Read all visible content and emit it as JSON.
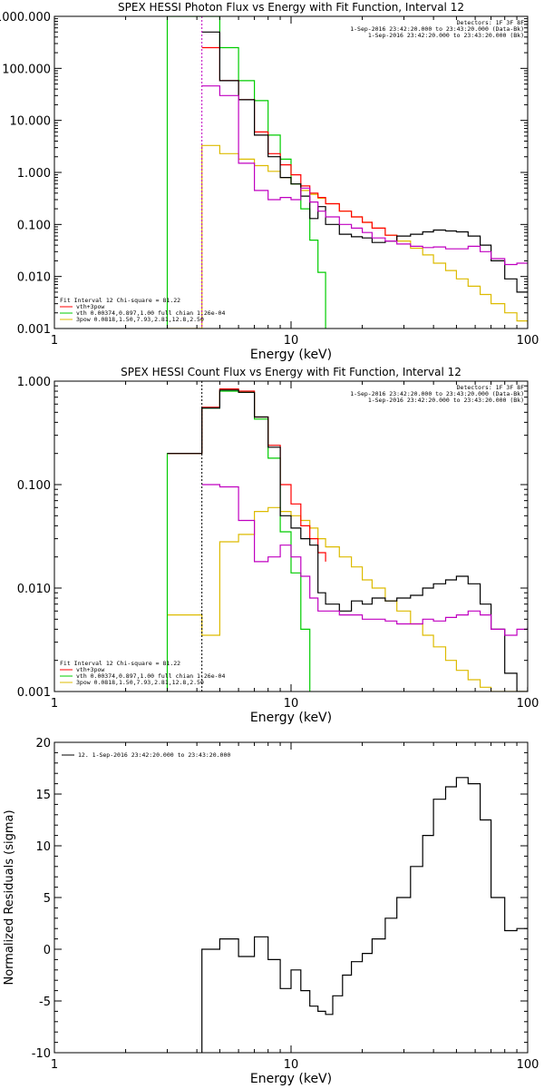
{
  "chart_data": [
    {
      "type": "line",
      "title": "SPEX HESSI Photon Flux vs Energy with Fit Function, Interval 12",
      "xlabel": "Energy (keV)",
      "ylabel": "",
      "xscale": "log",
      "yscale": "log",
      "xlim": [
        1,
        100
      ],
      "ylim": [
        0.001,
        1000
      ],
      "xticks": [
        {
          "v": 1,
          "label": "1"
        },
        {
          "v": 10,
          "label": "10"
        },
        {
          "v": 100,
          "label": "100"
        }
      ],
      "yticks": [
        {
          "v": 0.001,
          "label": "0.001"
        },
        {
          "v": 0.01,
          "label": "0.010"
        },
        {
          "v": 0.1,
          "label": "0.100"
        },
        {
          "v": 1,
          "label": "1.000"
        },
        {
          "v": 10,
          "label": "10.000"
        },
        {
          "v": 100,
          "label": "100.000"
        },
        {
          "v": 1000,
          "label": "1000.000"
        }
      ],
      "vline": {
        "x": 4.2,
        "color": "#c000c0"
      },
      "legend_top_right": [
        {
          "text": "Detectors: 1F 3F 8F",
          "color": "#000000"
        },
        {
          "text": "1-Sep-2016 23:42:20.000 to 23:43:20.000 (Data-Bk)",
          "color": "#000000"
        },
        {
          "text": "1-Sep-2016 23:42:20.000 to 23:43:20.000 (Bk)",
          "color": "#c000c0"
        }
      ],
      "legend_bottom_left": [
        {
          "text": "Fit Interval 12    Chi-square = 81.22",
          "color": "#000000"
        },
        {
          "text": "vth+3pow",
          "color": "#ff0000"
        },
        {
          "text": "vth 0.00374,0.897,1.00  full chian 1.26e-04",
          "color": "#00cc00"
        },
        {
          "text": "3pow 0.0818,1.50,7.93,2.81,12.8,2.50",
          "color": "#ddbb00"
        }
      ],
      "series": [
        {
          "color": "#ddbb00",
          "x": [
            3.0,
            4.2,
            5.0,
            6.0,
            7.0,
            8.0,
            9.0,
            10.0,
            11.0,
            12.0,
            13.0,
            14.0,
            16.0,
            18.0,
            20.0,
            22.0,
            25.0,
            28.0,
            32.0,
            36.0,
            40.0,
            45.0,
            50.0,
            56.0,
            63.0,
            70.0,
            80.0,
            90.0,
            100.0
          ],
          "y": [
            0.001,
            3.3,
            2.3,
            1.8,
            1.35,
            1.05,
            0.8,
            0.6,
            0.45,
            0.38,
            0.32,
            0.25,
            0.18,
            0.14,
            0.11,
            0.085,
            0.062,
            0.048,
            0.035,
            0.026,
            0.018,
            0.013,
            0.009,
            0.0065,
            0.0045,
            0.003,
            0.002,
            0.0014,
            0.0012
          ]
        },
        {
          "color": "#00cc00",
          "x": [
            3.0,
            3.0,
            4.2,
            5.0,
            6.0,
            7.0,
            8.0,
            9.0,
            10.0,
            11.0,
            12.0,
            13.0,
            14.0,
            14.0
          ],
          "y": [
            0.001,
            1000,
            1000,
            250,
            58,
            24,
            5.2,
            1.8,
            0.6,
            0.2,
            0.05,
            0.012,
            0.0035,
            0.001
          ]
        },
        {
          "color": "#ff0000",
          "x": [
            4.2,
            5.0,
            6.0,
            7.0,
            8.0,
            9.0,
            10.0,
            11.0,
            12.0,
            13.0,
            14.0,
            16.0,
            18.0,
            20.0,
            22.0,
            25.0,
            28.0
          ],
          "y": [
            250,
            58,
            25,
            6,
            2.3,
            1.4,
            0.9,
            0.55,
            0.4,
            0.33,
            0.25,
            0.18,
            0.14,
            0.11,
            0.085,
            0.062,
            0.05
          ]
        },
        {
          "color": "#000000",
          "x": [
            4.2,
            5.0,
            6.0,
            7.0,
            8.0,
            9.0,
            10.0,
            11.0,
            12.0,
            13.0,
            14.0,
            16.0,
            18.0,
            20.0,
            22.0,
            25.0,
            28.0,
            32.0,
            36.0,
            40.0,
            45.0,
            50.0,
            56.0,
            63.0,
            70.0,
            80.0,
            90.0,
            100.0
          ],
          "y": [
            500,
            58,
            25,
            5.2,
            2.0,
            0.8,
            0.6,
            0.35,
            0.13,
            0.22,
            0.1,
            0.065,
            0.058,
            0.055,
            0.045,
            0.048,
            0.06,
            0.065,
            0.072,
            0.078,
            0.075,
            0.072,
            0.06,
            0.04,
            0.02,
            0.009,
            0.005,
            0.005
          ]
        },
        {
          "color": "#c000c0",
          "x": [
            4.2,
            5.0,
            6.0,
            7.0,
            8.0,
            9.0,
            10.0,
            11.0,
            12.0,
            13.0,
            14.0,
            16.0,
            18.0,
            20.0,
            22.0,
            25.0,
            28.0,
            32.0,
            36.0,
            40.0,
            45.0,
            50.0,
            56.0,
            63.0,
            70.0,
            80.0,
            90.0,
            100.0
          ],
          "y": [
            46,
            30,
            1.5,
            0.45,
            0.3,
            0.33,
            0.3,
            0.5,
            0.27,
            0.18,
            0.14,
            0.1,
            0.085,
            0.07,
            0.055,
            0.048,
            0.042,
            0.038,
            0.036,
            0.037,
            0.034,
            0.034,
            0.038,
            0.03,
            0.022,
            0.017,
            0.018,
            0.018
          ]
        }
      ]
    },
    {
      "type": "line",
      "title": "SPEX HESSI Count Flux vs Energy with Fit Function, Interval 12",
      "xlabel": "Energy (keV)",
      "ylabel": "",
      "xscale": "log",
      "yscale": "log",
      "xlim": [
        1,
        100
      ],
      "ylim": [
        0.001,
        1
      ],
      "xticks": [
        {
          "v": 1,
          "label": "1"
        },
        {
          "v": 10,
          "label": "10"
        },
        {
          "v": 100,
          "label": "100"
        }
      ],
      "yticks": [
        {
          "v": 0.001,
          "label": "0.001"
        },
        {
          "v": 0.01,
          "label": "0.010"
        },
        {
          "v": 0.1,
          "label": "0.100"
        },
        {
          "v": 1,
          "label": "1.000"
        }
      ],
      "vline": {
        "x": 4.2,
        "color": "#000000"
      },
      "legend_top_right": [
        {
          "text": "Detectors: 1F 3F 8F",
          "color": "#000000"
        },
        {
          "text": "1-Sep-2016 23:42:20.000 to 23:43:20.000 (Data-Bk)",
          "color": "#000000"
        },
        {
          "text": "1-Sep-2016 23:42:20.000 to 23:43:20.000 (Bk)",
          "color": "#c000c0"
        }
      ],
      "legend_bottom_left": [
        {
          "text": "Fit Interval 12    Chi-square = 81.22",
          "color": "#000000"
        },
        {
          "text": "vth+3pow",
          "color": "#ff0000"
        },
        {
          "text": "vth 0.00374,0.897,1.00  full chian 1.26e-04",
          "color": "#00cc00"
        },
        {
          "text": "3pow 0.0818,1.50,7.93,2.81,12.8,2.50",
          "color": "#ddbb00"
        }
      ],
      "series": [
        {
          "color": "#ddbb00",
          "x": [
            3.0,
            4.2,
            5.0,
            6.0,
            7.0,
            8.0,
            9.0,
            10.0,
            11.0,
            12.0,
            13.0,
            14.0,
            16.0,
            18.0,
            20.0,
            22.0,
            25.0,
            28.0,
            32.0,
            36.0,
            40.0,
            45.0,
            50.0,
            56.0,
            63.0,
            70.0,
            80.0,
            90.0,
            100.0
          ],
          "y": [
            0.0055,
            0.0035,
            0.028,
            0.033,
            0.055,
            0.06,
            0.055,
            0.05,
            0.045,
            0.038,
            0.03,
            0.025,
            0.02,
            0.016,
            0.012,
            0.01,
            0.0075,
            0.006,
            0.0045,
            0.0035,
            0.0027,
            0.002,
            0.0016,
            0.0013,
            0.0011,
            0.001,
            0.001,
            0.001,
            0.001
          ]
        },
        {
          "color": "#00cc00",
          "x": [
            3.0,
            3.0,
            4.2,
            5.0,
            6.0,
            7.0,
            8.0,
            9.0,
            10.0,
            11.0,
            12.0,
            12.0
          ],
          "y": [
            0.001,
            0.2,
            0.55,
            0.8,
            0.78,
            0.43,
            0.18,
            0.035,
            0.014,
            0.004,
            0.0015,
            0.001
          ]
        },
        {
          "color": "#ff0000",
          "x": [
            3.0,
            4.2,
            5.0,
            6.0,
            7.0,
            8.0,
            9.0,
            10.0,
            11.0,
            12.0,
            13.0,
            14.0
          ],
          "y": [
            0.2,
            0.56,
            0.84,
            0.8,
            0.45,
            0.24,
            0.1,
            0.065,
            0.04,
            0.03,
            0.022,
            0.018
          ]
        },
        {
          "color": "#000000",
          "x": [
            3.0,
            4.2,
            5.0,
            6.0,
            7.0,
            8.0,
            9.0,
            10.0,
            11.0,
            12.0,
            13.0,
            14.0,
            16.0,
            18.0,
            20.0,
            22.0,
            25.0,
            28.0,
            32.0,
            36.0,
            40.0,
            45.0,
            50.0,
            56.0,
            63.0,
            70.0,
            80.0,
            90.0,
            100.0
          ],
          "y": [
            0.2,
            0.55,
            0.82,
            0.78,
            0.45,
            0.23,
            0.05,
            0.038,
            0.03,
            0.026,
            0.009,
            0.007,
            0.006,
            0.0075,
            0.007,
            0.008,
            0.0075,
            0.008,
            0.0085,
            0.01,
            0.011,
            0.012,
            0.013,
            0.011,
            0.007,
            0.004,
            0.0015,
            0.001,
            0.0011
          ]
        },
        {
          "color": "#c000c0",
          "x": [
            4.2,
            5.0,
            6.0,
            7.0,
            8.0,
            9.0,
            10.0,
            11.0,
            12.0,
            13.0,
            14.0,
            16.0,
            18.0,
            20.0,
            22.0,
            25.0,
            28.0,
            32.0,
            36.0,
            40.0,
            45.0,
            50.0,
            56.0,
            63.0,
            70.0,
            80.0,
            90.0,
            100.0
          ],
          "y": [
            0.1,
            0.095,
            0.045,
            0.018,
            0.02,
            0.026,
            0.02,
            0.013,
            0.008,
            0.006,
            0.006,
            0.0055,
            0.0055,
            0.005,
            0.005,
            0.0048,
            0.0045,
            0.0045,
            0.005,
            0.0048,
            0.0052,
            0.0055,
            0.006,
            0.0055,
            0.004,
            0.0035,
            0.004,
            0.0042
          ]
        }
      ]
    },
    {
      "type": "line",
      "title": "",
      "xlabel": "Energy (keV)",
      "ylabel": "Normalized Residuals (sigma)",
      "xscale": "log",
      "yscale": "linear",
      "xlim": [
        1,
        100
      ],
      "ylim": [
        -10,
        20
      ],
      "xticks": [
        {
          "v": 1,
          "label": "1"
        },
        {
          "v": 10,
          "label": "10"
        },
        {
          "v": 100,
          "label": "100"
        }
      ],
      "yticks": [
        {
          "v": -10,
          "label": "-10"
        },
        {
          "v": -5,
          "label": "-5"
        },
        {
          "v": 0,
          "label": "0"
        },
        {
          "v": 5,
          "label": "5"
        },
        {
          "v": 10,
          "label": "10"
        },
        {
          "v": 15,
          "label": "15"
        },
        {
          "v": 20,
          "label": "20"
        }
      ],
      "legend_top_left": [
        {
          "text": "12.  1-Sep-2016 23:42:20.000 to 23:43:20.000",
          "color": "#000000"
        }
      ],
      "series": [
        {
          "color": "#000000",
          "x": [
            4.2,
            4.2,
            5.0,
            6.0,
            7.0,
            8.0,
            9.0,
            10.0,
            11.0,
            12.0,
            13.0,
            14.0,
            15.0,
            16.5,
            18.0,
            20.0,
            22.0,
            25.0,
            28.0,
            32.0,
            36.0,
            40.0,
            45.0,
            50.0,
            56.0,
            63.0,
            70.0,
            80.0,
            90.0,
            100.0
          ],
          "y": [
            -10,
            0,
            1,
            -0.7,
            1.2,
            -1,
            -3.8,
            -2,
            -4,
            -5.5,
            -6,
            -6.3,
            -4.5,
            -2.5,
            -1.2,
            -0.4,
            1,
            3,
            5,
            8,
            11,
            14.5,
            15.7,
            16.6,
            16,
            12.5,
            5,
            1.8,
            2,
            2
          ]
        }
      ]
    }
  ]
}
